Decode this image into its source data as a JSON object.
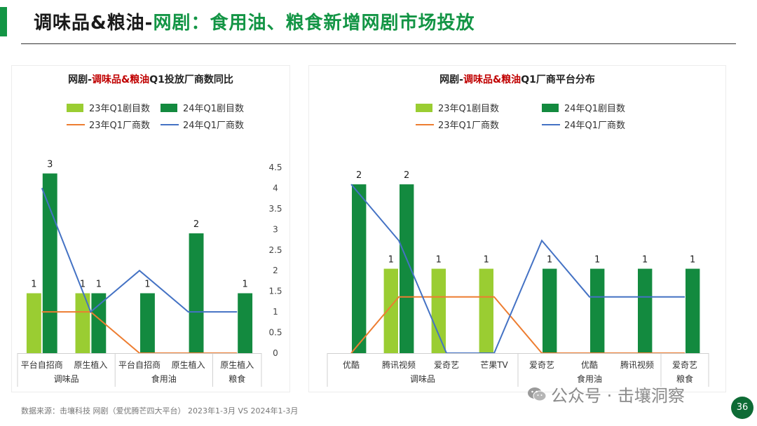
{
  "header": {
    "title_prefix": "调味品&粮油-",
    "title_main": "网剧：食用油、粮食新增网剧市场投放",
    "accent_color": "#139545"
  },
  "colors": {
    "bar23": "#9ACD32",
    "bar24": "#138A3F",
    "line23": "#ED7D31",
    "line24": "#4472C4",
    "title_highlight": "#C00000"
  },
  "chart_data": [
    {
      "type": "bar",
      "title_prefix": "网剧-",
      "title_highlight": "调味品&粮油",
      "title_suffix": "Q1投放厂商数同比",
      "legend": [
        "23年Q1剧目数",
        "24年Q1剧目数",
        "23年Q1厂商数",
        "24年Q1厂商数"
      ],
      "groups": [
        {
          "label": "调味品",
          "categories": [
            "平台自招商",
            "原生植入"
          ]
        },
        {
          "label": "食用油",
          "categories": [
            "平台自招商",
            "原生植入"
          ]
        },
        {
          "label": "粮食",
          "categories": [
            "原生植入"
          ]
        }
      ],
      "series": [
        {
          "name": "23年Q1剧目数",
          "kind": "bar",
          "values": [
            1,
            1,
            null,
            null,
            null
          ]
        },
        {
          "name": "24年Q1剧目数",
          "kind": "bar",
          "values": [
            3,
            1,
            1,
            2,
            1
          ]
        },
        {
          "name": "23年Q1厂商数",
          "kind": "line",
          "values": [
            1,
            1,
            0,
            0,
            0
          ]
        },
        {
          "name": "24年Q1厂商数",
          "kind": "line",
          "values": [
            4,
            1,
            2,
            1,
            1
          ]
        }
      ],
      "data_labels": {
        "23年Q1剧目数": [
          "1",
          "1",
          "",
          "",
          ""
        ],
        "24年Q1剧目数": [
          "3",
          "1",
          "1",
          "2",
          "1"
        ]
      },
      "bar_ylim": [
        0,
        3.1
      ],
      "line_ylim": [
        0,
        4.5
      ],
      "right_axis_ticks": [
        "4.5",
        "4",
        "3.5",
        "3",
        "2.5",
        "2",
        "1.5",
        "1",
        "0.5",
        "0"
      ]
    },
    {
      "type": "bar",
      "title_prefix": "网剧-",
      "title_highlight": "调味品&粮油",
      "title_suffix": "Q1厂商平台分布",
      "legend": [
        "23年Q1剧目数",
        "24年Q1剧目数",
        "23年Q1厂商数",
        "24年Q1厂商数"
      ],
      "groups": [
        {
          "label": "调味品",
          "categories": [
            "优酷",
            "腾讯视频",
            "爱奇艺",
            "芒果TV"
          ]
        },
        {
          "label": "食用油",
          "categories": [
            "爱奇艺",
            "优酷",
            "腾讯视频"
          ]
        },
        {
          "label": "粮食",
          "categories": [
            "爱奇艺"
          ]
        }
      ],
      "series": [
        {
          "name": "23年Q1剧目数",
          "kind": "bar",
          "values": [
            null,
            1,
            1,
            1,
            null,
            null,
            null,
            null
          ]
        },
        {
          "name": "24年Q1剧目数",
          "kind": "bar",
          "values": [
            2,
            2,
            null,
            null,
            1,
            1,
            1,
            1
          ]
        },
        {
          "name": "23年Q1厂商数",
          "kind": "line",
          "values": [
            0,
            1,
            1,
            1,
            0,
            0,
            0,
            0
          ]
        },
        {
          "name": "24年Q1厂商数",
          "kind": "line",
          "values": [
            3,
            2,
            0,
            0,
            2,
            1,
            1,
            1
          ]
        }
      ],
      "data_labels": {
        "23年Q1剧目数": [
          "",
          "1",
          "1",
          "1",
          "",
          "",
          "",
          ""
        ],
        "24年Q1剧目数": [
          "2",
          "2",
          "",
          "",
          "1",
          "1",
          "1",
          "1"
        ]
      },
      "bar_ylim": [
        0,
        2.2
      ],
      "line_ylim": [
        0,
        3.3
      ]
    }
  ],
  "footer": {
    "source": "数据来源：击壤科技   网剧（爱优腾芒四大平台）   2023年1-3月 VS 2024年1-3月"
  },
  "watermark": {
    "text": "公众号 · 击壤洞察"
  },
  "page_number": "36"
}
